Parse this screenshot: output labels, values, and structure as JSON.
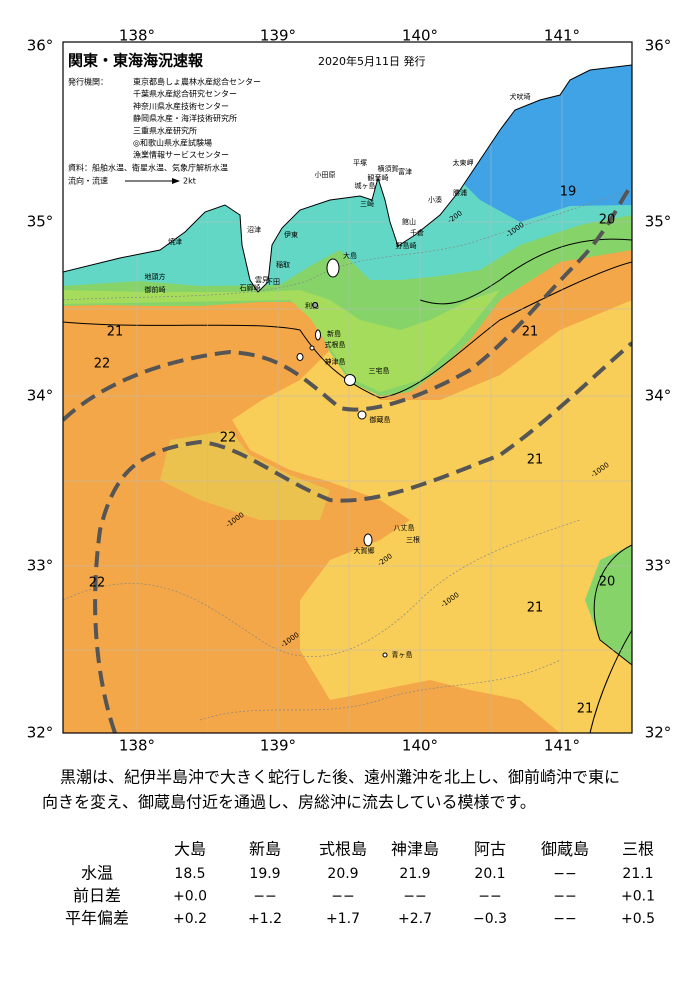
{
  "map": {
    "title": "関東・東海海況速報",
    "date": "2020年5月11日 発行",
    "issuer_label": "発行機関：",
    "issuers": [
      "東京都島しょ農林水産総合センター",
      "千葉県水産総合研究センター",
      "神奈川県水産技術センター",
      "静岡県水産・海洋技術研究所",
      "三重県水産研究所",
      "◎和歌山県水産試験場",
      "漁業情報サービスセンター"
    ],
    "source": "資料：船舶水温、衛星水温、気象庁解析水温",
    "flow_label": "流向・流速",
    "flow_scale": "2kt",
    "lon_labels": [
      "138°",
      "139°",
      "140°",
      "141°"
    ],
    "lat_labels": [
      "36°",
      "35°",
      "34°",
      "33°",
      "32°"
    ],
    "places": [
      "犬吠埼",
      "太東岬",
      "勝浦",
      "小湊",
      "横須賀",
      "平塚",
      "富津",
      "観音崎",
      "城ヶ島",
      "三崎",
      "館山",
      "千倉",
      "野島崎",
      "小田原",
      "伊東",
      "沼津",
      "焼津",
      "稲取",
      "下田",
      "雲見",
      "石廊崎",
      "地頭方",
      "御前崎",
      "大島",
      "利島",
      "新島",
      "式根島",
      "神津島",
      "三宅島",
      "御蔵島",
      "八丈島",
      "三根",
      "大賀郷",
      "青ヶ島"
    ],
    "isotherm_labels": [
      "19",
      "20",
      "21",
      "22",
      "21",
      "22",
      "21",
      "22",
      "20",
      "21",
      "21"
    ],
    "depth_labels": [
      "-200",
      "-1000",
      "-1000",
      "-1000",
      "-1000",
      "-200",
      "-1000"
    ]
  },
  "description": [
    "黒潮は、紀伊半島沖で大きく蛇行した後、遠州灘沖を北上し、御前崎沖で東に",
    "向きを変え、御蔵島付近を通過し、房総沖に流去している模様です。"
  ],
  "table": {
    "header": [
      "大島",
      "新島",
      "式根島",
      "神津島",
      "阿古",
      "御蔵島",
      "三根"
    ],
    "rows": [
      [
        "水温",
        "18.5",
        "19.9",
        "20.9",
        "21.9",
        "20.1",
        "−−",
        "21.1"
      ],
      [
        "前日差",
        "+0.0",
        "−−",
        "−−",
        "−−",
        "−−",
        "−−",
        "+0.1"
      ],
      [
        "平年偏差",
        "+0.2",
        "+1.2",
        "+1.7",
        "+2.7",
        "−0.3",
        "−−",
        "+0.5"
      ]
    ]
  }
}
